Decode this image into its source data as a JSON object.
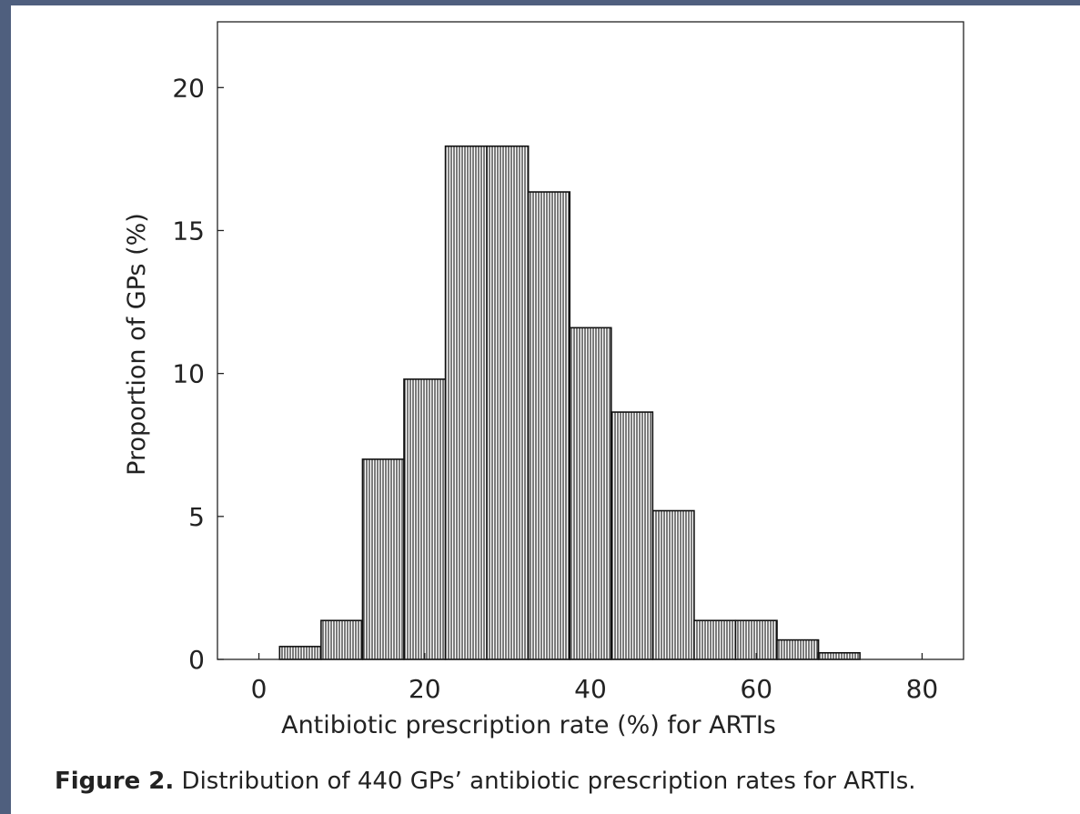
{
  "colors": {
    "frame": "#4f5f7e",
    "background": "#ffffff",
    "ink": "#111111"
  },
  "caption": {
    "label": "Figure 2.",
    "text": "Distribution of 440 GPs’ antibiotic prescription rates for ARTIs."
  },
  "chart_data": {
    "type": "bar",
    "subtype": "histogram",
    "title": "",
    "xlabel": "Antibiotic prescription rate (%) for ARTIs",
    "ylabel": "Proportion of GPs (%)",
    "xlim": [
      -5,
      85
    ],
    "ylim": [
      0,
      22.3
    ],
    "xticks": [
      0,
      20,
      40,
      60,
      80
    ],
    "yticks": [
      0,
      5,
      10,
      15,
      20
    ],
    "bin_width": 5,
    "bins": [
      {
        "start": 2.5,
        "end": 7.5,
        "value": 0.45
      },
      {
        "start": 7.5,
        "end": 12.5,
        "value": 1.36
      },
      {
        "start": 12.5,
        "end": 17.5,
        "value": 7.0
      },
      {
        "start": 17.5,
        "end": 22.5,
        "value": 9.8
      },
      {
        "start": 22.5,
        "end": 27.5,
        "value": 17.95
      },
      {
        "start": 27.5,
        "end": 32.5,
        "value": 17.95
      },
      {
        "start": 32.5,
        "end": 37.5,
        "value": 16.35
      },
      {
        "start": 37.5,
        "end": 42.5,
        "value": 11.6
      },
      {
        "start": 42.5,
        "end": 47.5,
        "value": 8.65
      },
      {
        "start": 47.5,
        "end": 52.5,
        "value": 5.2
      },
      {
        "start": 52.5,
        "end": 57.5,
        "value": 1.36
      },
      {
        "start": 57.5,
        "end": 62.5,
        "value": 1.36
      },
      {
        "start": 62.5,
        "end": 67.5,
        "value": 0.68
      },
      {
        "start": 67.5,
        "end": 72.5,
        "value": 0.23
      }
    ],
    "fill_pattern": "vertical-hatch",
    "grid": false,
    "legend": "none"
  }
}
